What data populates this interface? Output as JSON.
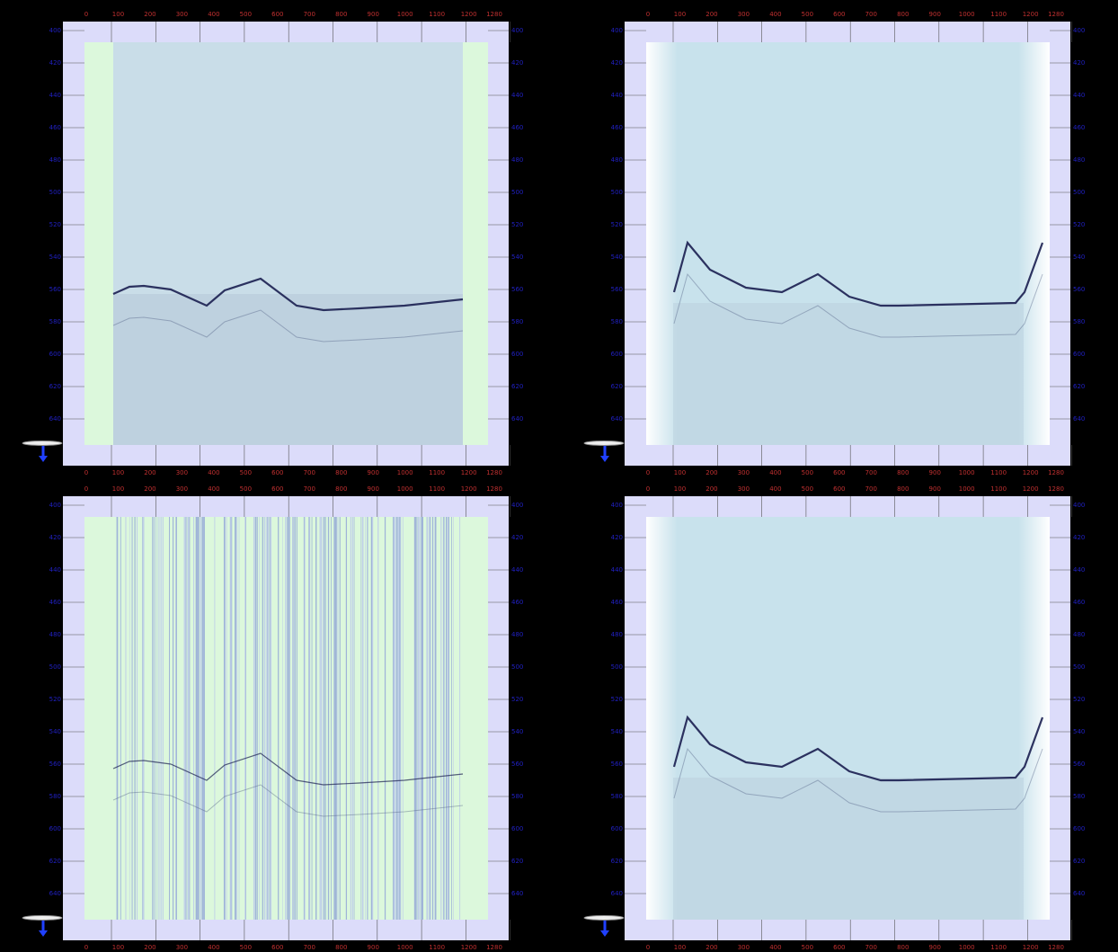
{
  "axes": {
    "x_ticks": [
      0,
      100,
      200,
      300,
      400,
      500,
      600,
      700,
      800,
      900,
      1000,
      1100,
      1200,
      1280
    ],
    "y_ticks": [
      400,
      420,
      440,
      460,
      480,
      500,
      520,
      540,
      560,
      580,
      600,
      620,
      640
    ]
  }
}
